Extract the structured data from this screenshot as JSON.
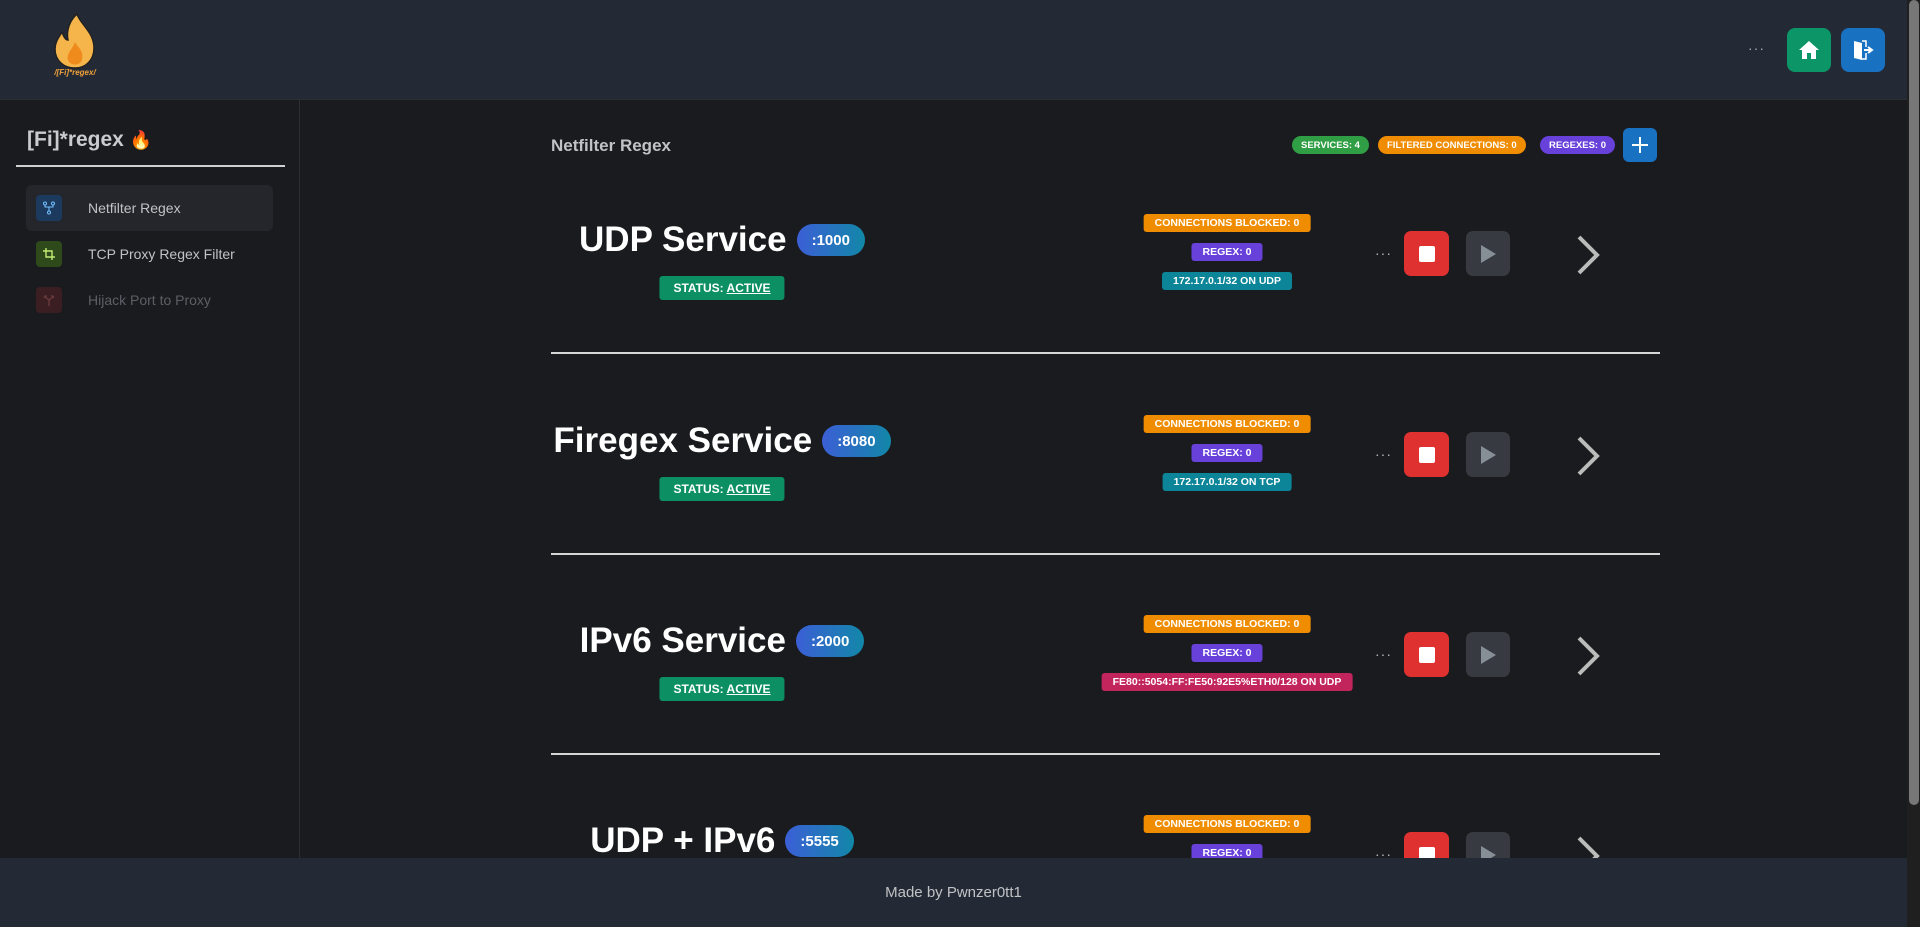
{
  "header": {
    "logo_text": "/[Fi]*regex/",
    "more": "···",
    "home_icon": "home-icon",
    "logout_icon": "logout-icon",
    "colors": {
      "home": "#0c9667",
      "logout": "#1971c2"
    }
  },
  "sidebar": {
    "title": "[Fi]*regex",
    "title_emoji": "🔥",
    "items": [
      {
        "label": "Netfilter Regex",
        "icon": "git-fork-icon",
        "active": true
      },
      {
        "label": "TCP Proxy Regex Filter",
        "icon": "crop-icon",
        "active": false
      },
      {
        "label": "Hijack Port to Proxy",
        "icon": "arrows-split-icon",
        "active": false,
        "disabled": true
      }
    ]
  },
  "main": {
    "title": "Netfilter Regex",
    "stats": {
      "services": "SERVICES: 4",
      "filtered": "FILTERED CONNECTIONS: 0",
      "regexes": "REGEXES: 0"
    },
    "services": [
      {
        "name": "UDP Service",
        "port": ":1000",
        "status_label": "STATUS:",
        "status": "ACTIVE",
        "blocked": "CONNECTIONS BLOCKED: 0",
        "regex": "REGEX: 0",
        "address": "172.17.0.1/32 ON UDP",
        "address_color": "#0c8599"
      },
      {
        "name": "Firegex Service",
        "port": ":8080",
        "status_label": "STATUS:",
        "status": "ACTIVE",
        "blocked": "CONNECTIONS BLOCKED: 0",
        "regex": "REGEX: 0",
        "address": "172.17.0.1/32 ON TCP",
        "address_color": "#0c8599"
      },
      {
        "name": "IPv6 Service",
        "port": ":2000",
        "status_label": "STATUS:",
        "status": "ACTIVE",
        "blocked": "CONNECTIONS BLOCKED: 0",
        "regex": "REGEX: 0",
        "address": "FE80::5054:FF:FE50:92E5%ETH0/128 ON UDP",
        "address_color": "#c2255c"
      },
      {
        "name": "UDP + IPv6",
        "port": ":5555",
        "blocked": "CONNECTIONS BLOCKED: 0",
        "regex": "REGEX: 0"
      }
    ],
    "more": "···"
  },
  "footer": {
    "text": "Made by Pwnzer0tt1"
  }
}
